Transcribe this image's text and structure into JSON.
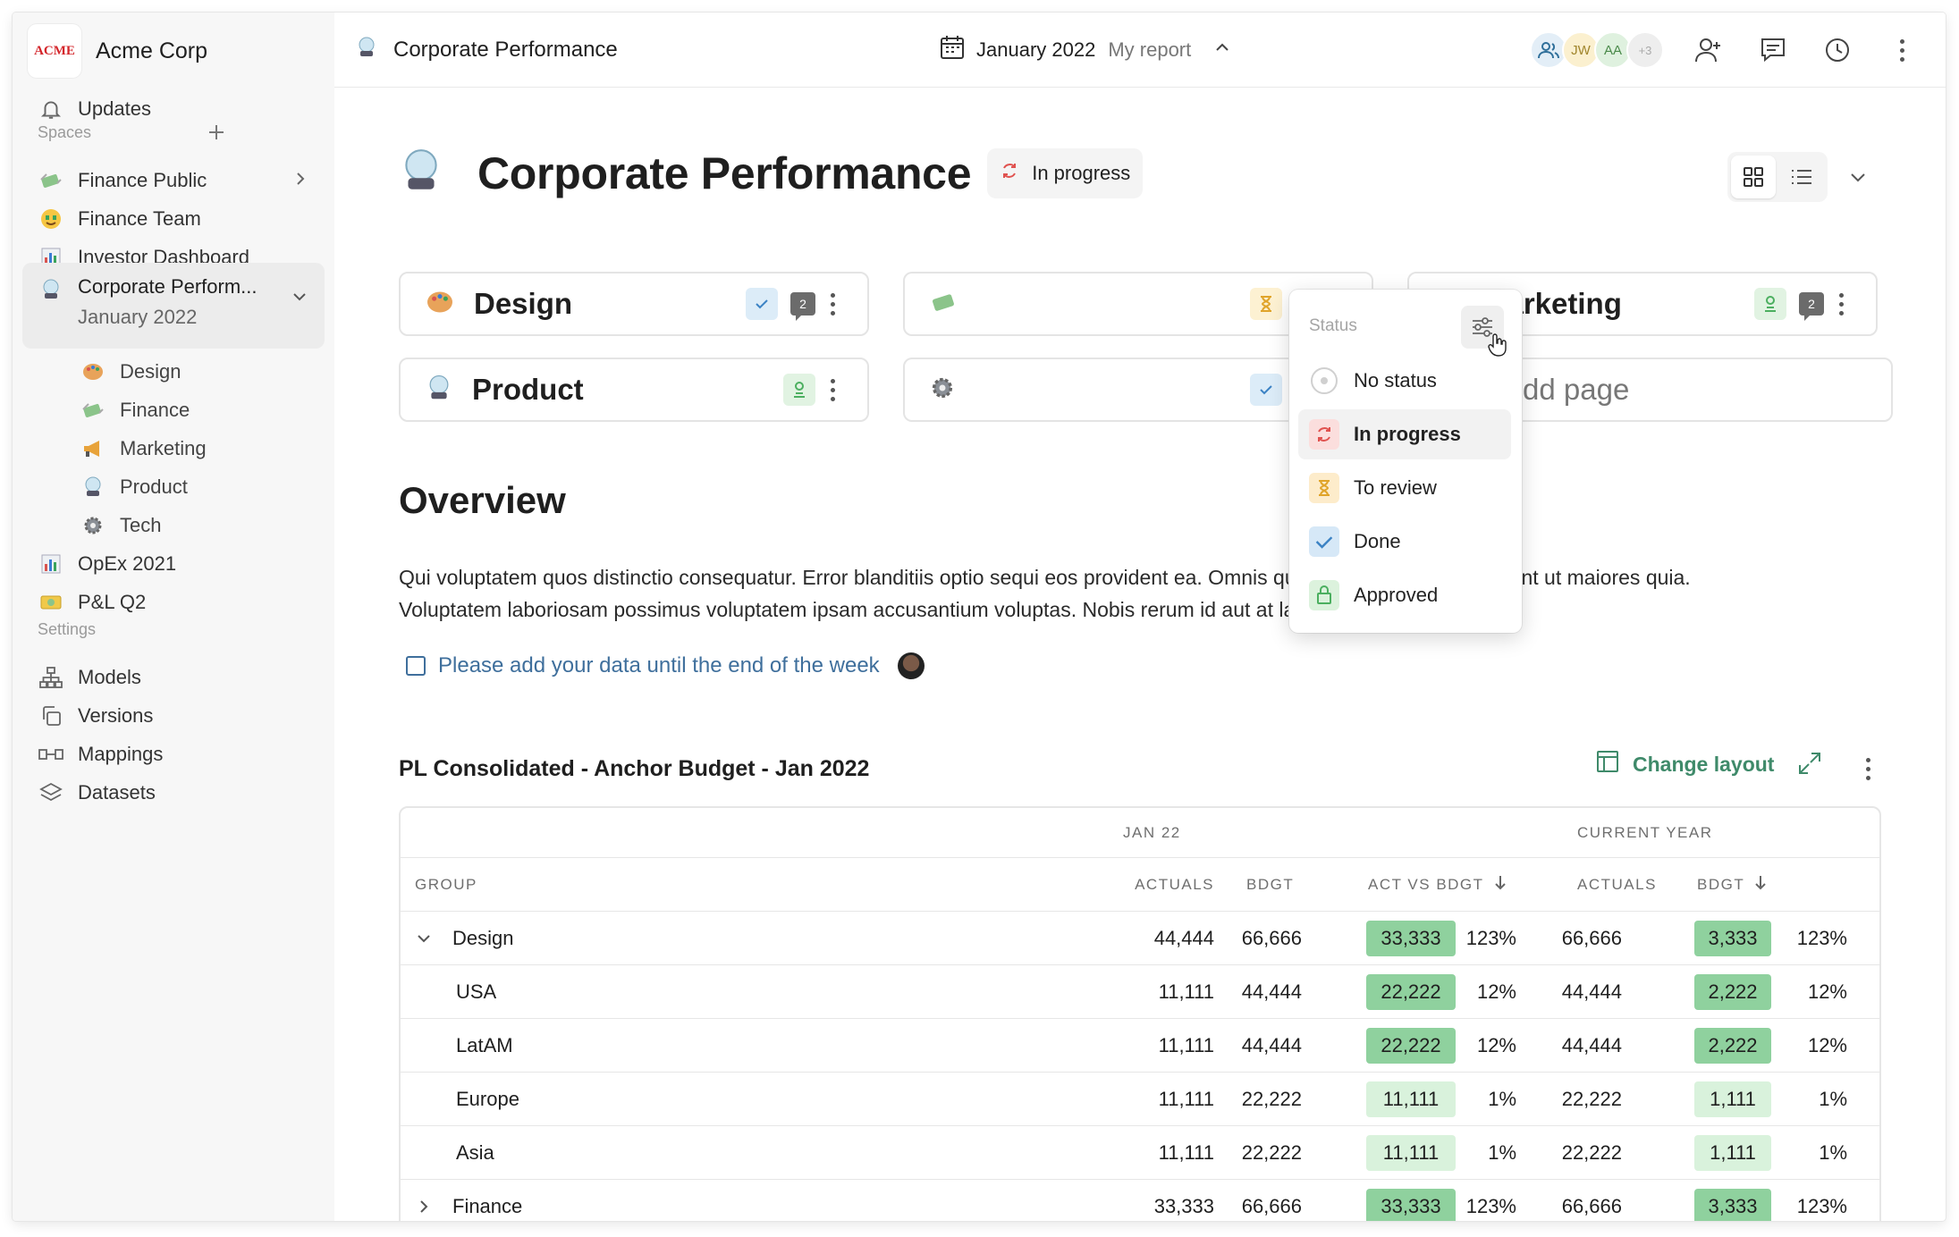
{
  "app": {
    "company": "Acme Corp",
    "logo_text": "ACME"
  },
  "sidebar": {
    "updates": "Updates",
    "spaces_label": "Spaces",
    "settings_label": "Settings",
    "items": [
      {
        "label": "Finance Public"
      },
      {
        "label": "Finance Team"
      },
      {
        "label": "Investor Dashboard"
      },
      {
        "label": "Corporate Perform...",
        "sub": "January 2022"
      },
      {
        "label": "Design"
      },
      {
        "label": "Finance"
      },
      {
        "label": "Marketing"
      },
      {
        "label": "Product"
      },
      {
        "label": "Tech"
      },
      {
        "label": "OpEx 2021"
      },
      {
        "label": "P&L Q2"
      }
    ],
    "settings": [
      {
        "label": "Models"
      },
      {
        "label": "Versions"
      },
      {
        "label": "Mappings"
      },
      {
        "label": "Datasets"
      }
    ]
  },
  "topbar": {
    "title": "Corporate Performance",
    "month": "January 2022",
    "report": "My report",
    "avatars": [
      "JW",
      "AA",
      "+3"
    ]
  },
  "page": {
    "title": "Corporate Performance",
    "status": "In progress",
    "cards": [
      {
        "name": "Design"
      },
      {
        "name": "Marketing"
      },
      {
        "name": "Product"
      }
    ],
    "card_comment_count": "2",
    "add_page": "Add page",
    "overview_heading": "Overview",
    "overview_text": "Qui voluptatem quos distinctio consequatur. Error blanditiis optio sequi eos provident ea. Omnis quibusdam cumque deserunt ut maiores quia. Voluptatem laboriosam possimus voluptatem ipsam accusantium voluptas. Nobis rerum id aut at laboriosam.",
    "task": "Please add your data until the end of the week"
  },
  "status_menu": {
    "heading": "Status",
    "options": [
      "No status",
      "In progress",
      "To review",
      "Done",
      "Approved"
    ],
    "selected": "In progress"
  },
  "table": {
    "title": "PL Consolidated - Anchor Budget  - Jan 2022",
    "change_layout": "Change layout",
    "group_headers": [
      "JAN 22",
      "CURRENT YEAR"
    ],
    "columns": [
      "GROUP",
      "ACTUALS",
      "BDGT",
      "ACT VS BDGT",
      "ACTUALS",
      "BDGT"
    ],
    "rows": [
      {
        "group": "Design",
        "a1": "44,444",
        "b1": "66,666",
        "v1": "33,333",
        "p1": "123%",
        "a2": "66,666",
        "v2": "3,333",
        "p2": "123%"
      },
      {
        "group": "USA",
        "a1": "11,111",
        "b1": "44,444",
        "v1": "22,222",
        "p1": "12%",
        "a2": "44,444",
        "v2": "2,222",
        "p2": "12%"
      },
      {
        "group": "LatAM",
        "a1": "11,111",
        "b1": "44,444",
        "v1": "22,222",
        "p1": "12%",
        "a2": "44,444",
        "v2": "2,222",
        "p2": "12%"
      },
      {
        "group": "Europe",
        "a1": "11,111",
        "b1": "22,222",
        "v1": "11,111",
        "p1": "1%",
        "a2": "22,222",
        "v2": "1,111",
        "p2": "1%"
      },
      {
        "group": "Asia",
        "a1": "11,111",
        "b1": "22,222",
        "v1": "11,111",
        "p1": "1%",
        "a2": "22,222",
        "v2": "1,111",
        "p2": "1%"
      },
      {
        "group": "Finance",
        "a1": "33,333",
        "b1": "66,666",
        "v1": "33,333",
        "p1": "123%",
        "a2": "66,666",
        "v2": "3,333",
        "p2": "123%"
      }
    ]
  },
  "colors": {
    "accent_green": "#3f8a6a",
    "link_blue": "#3f6f9c",
    "highlight_strong": "#8fd19e",
    "highlight_light": "#d9f2dc"
  }
}
